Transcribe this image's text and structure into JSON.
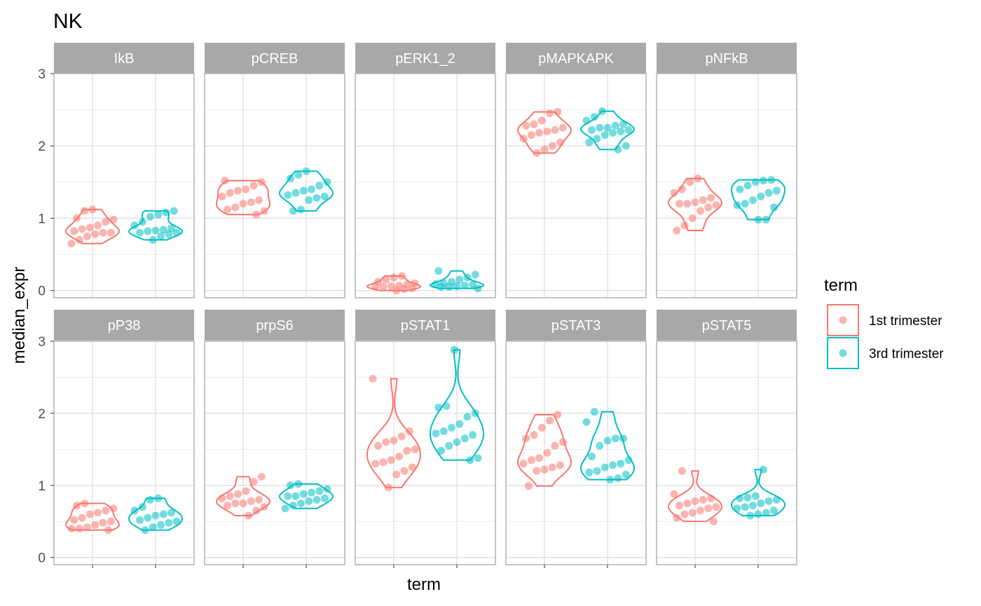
{
  "chart_data": {
    "type": "violin",
    "title": "NK",
    "xlabel": "term",
    "ylabel": "median_expr",
    "ylim": [
      -0.1,
      3.0
    ],
    "y_ticks": [
      "0",
      "1",
      "2",
      "3"
    ],
    "groups": [
      "1st trimester",
      "3rd trimester"
    ],
    "colors": {
      "1st trimester": "#F8766D",
      "3rd trimester": "#00BFC4"
    },
    "legend": {
      "title": "term",
      "position": "right",
      "items": [
        "1st trimester",
        "3rd trimester"
      ]
    },
    "grid": true,
    "panels": [
      {
        "name": "IkB",
        "series": [
          {
            "group": "1st trimester",
            "points": [
              0.65,
              0.7,
              0.75,
              0.78,
              0.8,
              0.8,
              0.82,
              0.85,
              0.87,
              0.9,
              0.95,
              0.98,
              1.0,
              1.1,
              1.12
            ]
          },
          {
            "group": "3rd trimester",
            "points": [
              0.7,
              0.75,
              0.78,
              0.8,
              0.8,
              0.82,
              0.83,
              0.84,
              0.86,
              0.9,
              0.95,
              1.02,
              1.05,
              1.08,
              1.1
            ]
          }
        ]
      },
      {
        "name": "pCREB",
        "series": [
          {
            "group": "1st trimester",
            "points": [
              1.05,
              1.1,
              1.12,
              1.15,
              1.2,
              1.22,
              1.25,
              1.3,
              1.35,
              1.38,
              1.4,
              1.45,
              1.5,
              1.52
            ]
          },
          {
            "group": "3rd trimester",
            "points": [
              1.1,
              1.12,
              1.25,
              1.28,
              1.3,
              1.32,
              1.35,
              1.38,
              1.4,
              1.45,
              1.5,
              1.55,
              1.6,
              1.65
            ]
          }
        ]
      },
      {
        "name": "pERK1_2",
        "series": [
          {
            "group": "1st trimester",
            "points": [
              0.0,
              0.02,
              0.03,
              0.05,
              0.05,
              0.06,
              0.07,
              0.08,
              0.1,
              0.12,
              0.15,
              0.18,
              0.2
            ]
          },
          {
            "group": "3rd trimester",
            "points": [
              0.03,
              0.05,
              0.05,
              0.06,
              0.07,
              0.08,
              0.09,
              0.1,
              0.12,
              0.15,
              0.18,
              0.22,
              0.27
            ]
          }
        ]
      },
      {
        "name": "pMAPKAPK",
        "series": [
          {
            "group": "1st trimester",
            "points": [
              1.9,
              1.95,
              2.0,
              2.05,
              2.1,
              2.15,
              2.18,
              2.2,
              2.22,
              2.25,
              2.28,
              2.3,
              2.35,
              2.45,
              2.47
            ]
          },
          {
            "group": "3rd trimester",
            "points": [
              1.95,
              2.0,
              2.05,
              2.1,
              2.15,
              2.18,
              2.2,
              2.22,
              2.22,
              2.25,
              2.25,
              2.28,
              2.3,
              2.35,
              2.4,
              2.48
            ]
          }
        ]
      },
      {
        "name": "pNFkB",
        "series": [
          {
            "group": "1st trimester",
            "points": [
              0.83,
              0.9,
              1.0,
              1.1,
              1.15,
              1.18,
              1.2,
              1.2,
              1.22,
              1.25,
              1.28,
              1.35,
              1.4,
              1.5,
              1.55
            ]
          },
          {
            "group": "3rd trimester",
            "points": [
              0.98,
              0.98,
              1.15,
              1.18,
              1.2,
              1.25,
              1.3,
              1.35,
              1.38,
              1.4,
              1.45,
              1.5,
              1.52,
              1.53
            ]
          }
        ]
      },
      {
        "name": "pP38",
        "series": [
          {
            "group": "1st trimester",
            "points": [
              0.38,
              0.4,
              0.4,
              0.42,
              0.45,
              0.48,
              0.5,
              0.52,
              0.55,
              0.6,
              0.62,
              0.65,
              0.68,
              0.72,
              0.75
            ]
          },
          {
            "group": "3rd trimester",
            "points": [
              0.38,
              0.42,
              0.45,
              0.48,
              0.5,
              0.52,
              0.55,
              0.58,
              0.6,
              0.62,
              0.65,
              0.7,
              0.8,
              0.82
            ]
          }
        ]
      },
      {
        "name": "prpS6",
        "series": [
          {
            "group": "1st trimester",
            "points": [
              0.58,
              0.65,
              0.7,
              0.72,
              0.75,
              0.75,
              0.78,
              0.8,
              0.82,
              0.85,
              0.88,
              0.92,
              1.05,
              1.12
            ]
          },
          {
            "group": "3rd trimester",
            "points": [
              0.68,
              0.72,
              0.75,
              0.78,
              0.8,
              0.82,
              0.85,
              0.85,
              0.88,
              0.9,
              0.92,
              0.95,
              1.0,
              1.02
            ]
          }
        ]
      },
      {
        "name": "pSTAT1",
        "series": [
          {
            "group": "1st trimester",
            "points": [
              0.97,
              1.15,
              1.2,
              1.25,
              1.3,
              1.32,
              1.35,
              1.4,
              1.48,
              1.5,
              1.55,
              1.6,
              1.62,
              1.68,
              1.75,
              2.48
            ]
          },
          {
            "group": "3rd trimester",
            "points": [
              1.35,
              1.38,
              1.48,
              1.55,
              1.6,
              1.65,
              1.7,
              1.72,
              1.75,
              1.8,
              1.85,
              1.95,
              2.0,
              2.08,
              2.1,
              2.88
            ]
          }
        ]
      },
      {
        "name": "pSTAT3",
        "series": [
          {
            "group": "1st trimester",
            "points": [
              0.99,
              1.2,
              1.22,
              1.25,
              1.28,
              1.3,
              1.35,
              1.38,
              1.45,
              1.55,
              1.6,
              1.65,
              1.7,
              1.8,
              1.9,
              1.98
            ]
          },
          {
            "group": "3rd trimester",
            "points": [
              1.08,
              1.1,
              1.15,
              1.18,
              1.2,
              1.25,
              1.28,
              1.3,
              1.35,
              1.4,
              1.55,
              1.62,
              1.65,
              1.65,
              1.88,
              2.02
            ]
          }
        ]
      },
      {
        "name": "pSTAT5",
        "series": [
          {
            "group": "1st trimester",
            "points": [
              0.5,
              0.55,
              0.6,
              0.62,
              0.65,
              0.68,
              0.7,
              0.72,
              0.75,
              0.78,
              0.8,
              0.82,
              0.88,
              1.2
            ]
          },
          {
            "group": "3rd trimester",
            "points": [
              0.58,
              0.6,
              0.62,
              0.65,
              0.68,
              0.7,
              0.72,
              0.75,
              0.78,
              0.8,
              0.82,
              0.83,
              0.85,
              1.22
            ]
          }
        ]
      }
    ]
  }
}
